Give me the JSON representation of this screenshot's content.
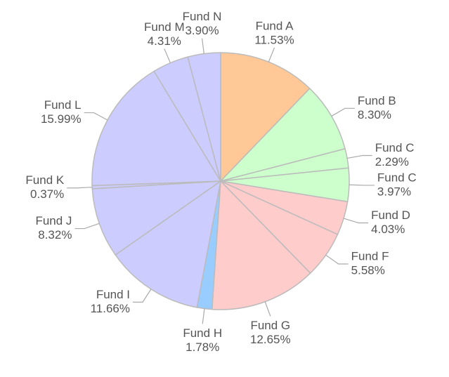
{
  "chart_data": {
    "type": "pie",
    "categories": [
      "Fund A",
      "Fund B",
      "Fund C",
      "Fund C",
      "Fund D",
      "Fund F",
      "Fund G",
      "Fund H",
      "Fund I",
      "Fund J",
      "Fund K",
      "Fund L",
      "Fund M",
      "Fund N"
    ],
    "values": [
      11.53,
      8.3,
      2.29,
      3.97,
      4.03,
      5.58,
      12.65,
      1.78,
      11.66,
      8.32,
      0.37,
      15.99,
      4.31,
      3.9
    ],
    "value_labels": [
      "11.53%",
      "8.30%",
      "2.29%",
      "3.97%",
      "4.03%",
      "5.58%",
      "12.65%",
      "1.78%",
      "11.66%",
      "8.32%",
      "0.37%",
      "15.99%",
      "4.31%",
      "3.90%"
    ],
    "colors": [
      "#ffc896",
      "#ccffcc",
      "#ccffcc",
      "#ccffcc",
      "#ffcccc",
      "#ffcccc",
      "#ffcccc",
      "#99ccff",
      "#ccccff",
      "#ccccff",
      "#ccccff",
      "#ccccff",
      "#ccccff",
      "#ccccff"
    ]
  }
}
